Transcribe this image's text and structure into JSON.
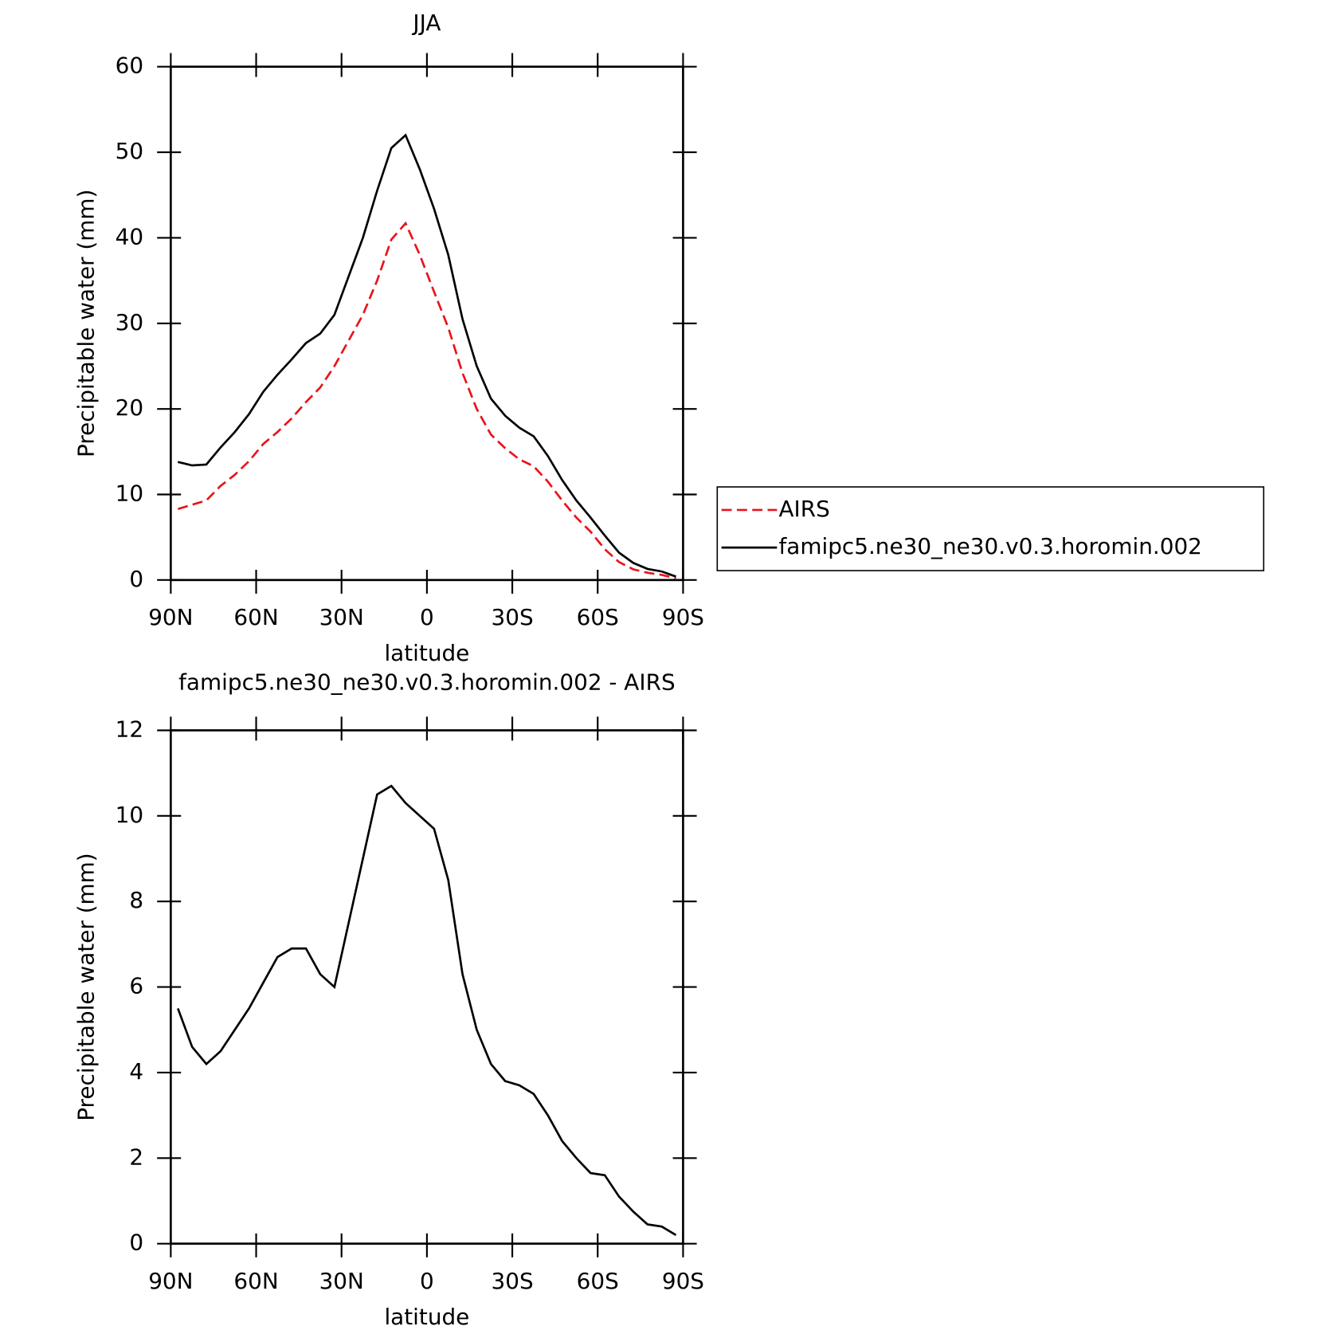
{
  "chart_data": [
    {
      "type": "line",
      "title": "JJA",
      "xlabel": "latitude",
      "ylabel": "Precipitable water (mm)",
      "x": [
        87.5,
        82.5,
        77.5,
        72.5,
        67.5,
        62.5,
        57.5,
        52.5,
        47.5,
        42.5,
        37.5,
        32.5,
        27.5,
        22.5,
        17.5,
        12.5,
        7.5,
        2.5,
        -2.5,
        -7.5,
        -12.5,
        -17.5,
        -22.5,
        -27.5,
        -32.5,
        -37.5,
        -42.5,
        -47.5,
        -52.5,
        -57.5,
        -62.5,
        -67.5,
        -72.5,
        -77.5,
        -82.5,
        -87.5
      ],
      "series": [
        {
          "name": "AIRS",
          "color": "#e8141b",
          "line_style": "dashed",
          "values": [
            8.3,
            8.8,
            9.3,
            11.0,
            12.3,
            13.9,
            15.9,
            17.3,
            18.9,
            20.8,
            22.5,
            25.0,
            28.0,
            31.0,
            35.0,
            39.8,
            41.7,
            38.0,
            33.7,
            29.5,
            24.2,
            20.0,
            17.0,
            15.4,
            14.1,
            13.3,
            11.5,
            9.3,
            7.3,
            5.65,
            3.6,
            2.1,
            1.25,
            0.85,
            0.6,
            0.2
          ]
        },
        {
          "name": "famipc5.ne30_ne30.v0.3.horomin.002",
          "color": "#000000",
          "line_style": "solid",
          "values": [
            13.8,
            13.4,
            13.5,
            15.5,
            17.3,
            19.4,
            22.0,
            24.0,
            25.8,
            27.7,
            28.8,
            31.0,
            35.5,
            40.0,
            45.5,
            50.5,
            52.0,
            48.0,
            43.4,
            38.0,
            30.5,
            25.0,
            21.2,
            19.2,
            17.8,
            16.8,
            14.5,
            11.7,
            9.3,
            7.3,
            5.2,
            3.2,
            2.0,
            1.3,
            1.0,
            0.4
          ]
        }
      ],
      "xlim": [
        90,
        -90
      ],
      "xticks": [
        {
          "value": 90,
          "label": "90N"
        },
        {
          "value": 60,
          "label": "60N"
        },
        {
          "value": 30,
          "label": "30N"
        },
        0,
        {
          "value": -30,
          "label": "30S"
        },
        {
          "value": -60,
          "label": "60S"
        },
        {
          "value": -90,
          "label": "90S"
        }
      ],
      "ylim": [
        0,
        60
      ],
      "yticks": [
        0,
        10,
        20,
        30,
        40,
        50,
        60
      ],
      "legend": "right"
    },
    {
      "type": "line",
      "title": "famipc5.ne30_ne30.v0.3.horomin.002 - AIRS",
      "xlabel": "latitude",
      "ylabel": "Precipitable water (mm)",
      "x": [
        87.5,
        82.5,
        77.5,
        72.5,
        67.5,
        62.5,
        57.5,
        52.5,
        47.5,
        42.5,
        37.5,
        32.5,
        27.5,
        22.5,
        17.5,
        12.5,
        7.5,
        2.5,
        -2.5,
        -7.5,
        -12.5,
        -17.5,
        -22.5,
        -27.5,
        -32.5,
        -37.5,
        -42.5,
        -47.5,
        -52.5,
        -57.5,
        -62.5,
        -67.5,
        -72.5,
        -77.5,
        -82.5,
        -87.5
      ],
      "series": [
        {
          "color": "#000000",
          "line_style": "solid",
          "values": [
            5.5,
            4.6,
            4.2,
            4.5,
            5.0,
            5.5,
            6.1,
            6.7,
            6.9,
            6.9,
            6.3,
            6.0,
            7.5,
            9.0,
            10.5,
            10.7,
            10.3,
            10.0,
            9.7,
            8.5,
            6.3,
            5.0,
            4.2,
            3.8,
            3.7,
            3.5,
            3.0,
            2.4,
            2.0,
            1.65,
            1.6,
            1.1,
            0.75,
            0.45,
            0.4,
            0.2
          ]
        }
      ],
      "xlim": [
        90,
        -90
      ],
      "xticks": [
        {
          "value": 90,
          "label": "90N"
        },
        {
          "value": 60,
          "label": "60N"
        },
        {
          "value": 30,
          "label": "30N"
        },
        0,
        {
          "value": -30,
          "label": "30S"
        },
        {
          "value": -60,
          "label": "60S"
        },
        {
          "value": -90,
          "label": "90S"
        }
      ],
      "ylim": [
        0,
        12
      ],
      "yticks": [
        0,
        2,
        4,
        6,
        8,
        10,
        12
      ]
    }
  ]
}
